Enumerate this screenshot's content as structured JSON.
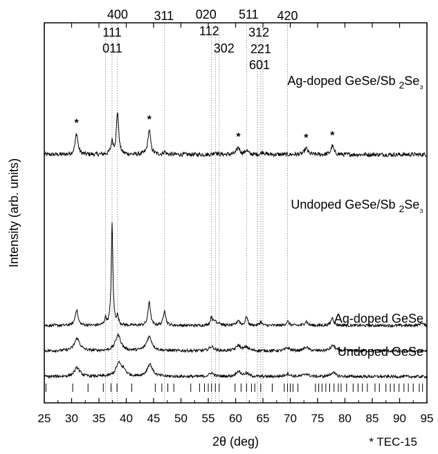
{
  "chart_data": {
    "type": "line",
    "xlabel": "2θ (deg)",
    "ylabel": "Intensity (arb. units)",
    "xlim": [
      25,
      95
    ],
    "x_ticks": [
      25,
      30,
      35,
      40,
      45,
      50,
      55,
      60,
      65,
      70,
      75,
      80,
      85,
      90,
      95
    ],
    "grid": false,
    "reference_lines": [
      {
        "x": 36.2,
        "labels": [
          "011"
        ]
      },
      {
        "x": 37.4,
        "labels": [
          "111"
        ]
      },
      {
        "x": 38.4,
        "labels": [
          "400"
        ]
      },
      {
        "x": 47.0,
        "labels": [
          "311"
        ]
      },
      {
        "x": 55.6,
        "labels": [
          "020"
        ]
      },
      {
        "x": 56.3,
        "labels": [
          "112"
        ]
      },
      {
        "x": 57.0,
        "labels": [
          "302"
        ]
      },
      {
        "x": 62.0,
        "labels": [
          "511"
        ]
      },
      {
        "x": 64.0,
        "labels": [
          "312"
        ]
      },
      {
        "x": 64.6,
        "labels": [
          "221"
        ]
      },
      {
        "x": 65.0,
        "labels": [
          "601"
        ]
      },
      {
        "x": 69.5,
        "labels": [
          "420"
        ]
      }
    ],
    "series": [
      {
        "name": "Ag-doped GeSe/Sb₂Se₃",
        "baseline": 0.63,
        "noise": 0.006,
        "peaks": [
          {
            "x": 30.9,
            "h": 0.06,
            "w": 0.3
          },
          {
            "x": 37.4,
            "h": 0.035,
            "w": 0.25
          },
          {
            "x": 38.4,
            "h": 0.12,
            "w": 0.25
          },
          {
            "x": 44.2,
            "h": 0.07,
            "w": 0.3
          },
          {
            "x": 47.0,
            "h": 0.008,
            "w": 0.25
          },
          {
            "x": 56.3,
            "h": 0.008,
            "w": 0.3
          },
          {
            "x": 60.5,
            "h": 0.02,
            "w": 0.35
          },
          {
            "x": 62.0,
            "h": 0.012,
            "w": 0.3
          },
          {
            "x": 65.0,
            "h": 0.008,
            "w": 0.3
          },
          {
            "x": 72.9,
            "h": 0.018,
            "w": 0.35
          },
          {
            "x": 77.7,
            "h": 0.025,
            "w": 0.3
          }
        ]
      },
      {
        "name": "Undoped GeSe/Sb₂Se₃",
        "baseline": 0.145,
        "noise": 0.004,
        "peaks": [
          {
            "x": 30.9,
            "h": 0.045,
            "w": 0.3
          },
          {
            "x": 36.2,
            "h": 0.02,
            "w": 0.2
          },
          {
            "x": 37.4,
            "h": 0.29,
            "w": 0.18
          },
          {
            "x": 38.4,
            "h": 0.025,
            "w": 0.2
          },
          {
            "x": 44.2,
            "h": 0.07,
            "w": 0.25
          },
          {
            "x": 47.0,
            "h": 0.045,
            "w": 0.25
          },
          {
            "x": 55.6,
            "h": 0.025,
            "w": 0.25
          },
          {
            "x": 56.3,
            "h": 0.012,
            "w": 0.25
          },
          {
            "x": 57.0,
            "h": 0.008,
            "w": 0.25
          },
          {
            "x": 60.5,
            "h": 0.015,
            "w": 0.3
          },
          {
            "x": 62.0,
            "h": 0.025,
            "w": 0.25
          },
          {
            "x": 64.6,
            "h": 0.01,
            "w": 0.25
          },
          {
            "x": 69.5,
            "h": 0.012,
            "w": 0.3
          },
          {
            "x": 72.9,
            "h": 0.012,
            "w": 0.3
          },
          {
            "x": 77.7,
            "h": 0.022,
            "w": 0.3
          },
          {
            "x": 94.0,
            "h": 0.008,
            "w": 0.3
          }
        ]
      },
      {
        "name": "Ag-doped GeSe",
        "baseline": 0.073,
        "noise": 0.004,
        "peaks": [
          {
            "x": 31.0,
            "h": 0.035,
            "w": 0.6
          },
          {
            "x": 38.5,
            "h": 0.045,
            "w": 0.6
          },
          {
            "x": 44.2,
            "h": 0.04,
            "w": 0.6
          },
          {
            "x": 55.6,
            "h": 0.012,
            "w": 0.5
          },
          {
            "x": 60.5,
            "h": 0.015,
            "w": 0.5
          },
          {
            "x": 62.0,
            "h": 0.01,
            "w": 0.5
          },
          {
            "x": 69.5,
            "h": 0.008,
            "w": 0.5
          },
          {
            "x": 72.9,
            "h": 0.01,
            "w": 0.5
          },
          {
            "x": 77.8,
            "h": 0.015,
            "w": 0.5
          }
        ]
      },
      {
        "name": "Undoped GeSe",
        "baseline": 0.0,
        "noise": 0.004,
        "peaks": [
          {
            "x": 31.0,
            "h": 0.025,
            "w": 0.6
          },
          {
            "x": 38.6,
            "h": 0.035,
            "w": 0.6
          },
          {
            "x": 39.5,
            "h": 0.015,
            "w": 0.6
          },
          {
            "x": 44.3,
            "h": 0.035,
            "w": 0.6
          },
          {
            "x": 55.6,
            "h": 0.01,
            "w": 0.5
          },
          {
            "x": 60.5,
            "h": 0.015,
            "w": 0.5
          },
          {
            "x": 62.0,
            "h": 0.008,
            "w": 0.5
          },
          {
            "x": 69.5,
            "h": 0.008,
            "w": 0.5
          },
          {
            "x": 72.9,
            "h": 0.008,
            "w": 0.5
          },
          {
            "x": 77.8,
            "h": 0.012,
            "w": 0.5
          }
        ]
      }
    ],
    "star_markers": [
      30.9,
      44.2,
      60.5,
      72.9,
      77.7
    ],
    "star_symbol": "*",
    "footnote": "* TEC-15",
    "reference_pattern_ticks": [
      25.3,
      30.2,
      33.0,
      35.8,
      37.2,
      38.3,
      41.0,
      45.3,
      46.5,
      47.6,
      48.7,
      51.8,
      53.4,
      54.3,
      55.0,
      55.6,
      56.3,
      57.0,
      59.9,
      61.0,
      62.0,
      62.9,
      63.5,
      64.6,
      66.7,
      68.9,
      69.5,
      70.0,
      70.5,
      71.4,
      74.6,
      75.2,
      75.8,
      76.5,
      77.2,
      78.0,
      78.8,
      79.3,
      80.3,
      81.5,
      82.4,
      83.2,
      84.1,
      85.5,
      86.3,
      87.5,
      88.3,
      89.0,
      89.9,
      90.8,
      91.6,
      92.5,
      93.6,
      94.2
    ]
  }
}
